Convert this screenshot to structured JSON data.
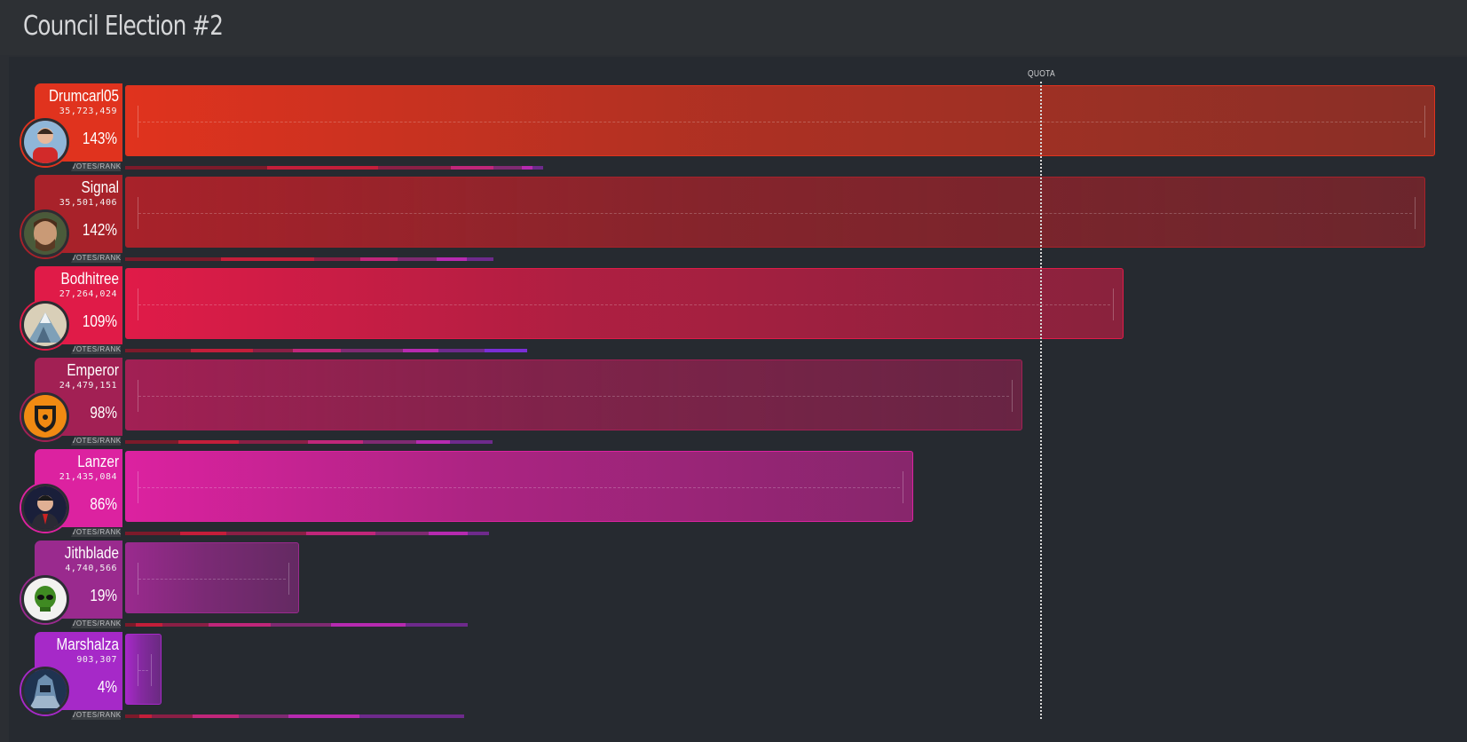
{
  "title": "Council Election #2",
  "quota_label": "QUOTA",
  "votes_rank_label": "VOTES/RANK",
  "colors": {
    "background": "#2b2e33",
    "panel": "#262a30"
  },
  "chart_data": {
    "type": "bar",
    "orientation": "horizontal",
    "title": "Council Election #2",
    "quota_percent": 100,
    "categories": [
      "Drumcarl05",
      "Signal",
      "Bodhitree",
      "Emperor",
      "Lanzer",
      "Jithblade",
      "Marshalza"
    ],
    "series": [
      {
        "name": "Votes",
        "values": [
          35723459,
          35501406,
          27264024,
          24479151,
          21435084,
          4740566,
          903307
        ]
      }
    ],
    "percent_of_quota": [
      143,
      142,
      109,
      98,
      86,
      19,
      4
    ],
    "candidates": [
      {
        "name": "Drumcarl05",
        "votes": "35,723,459",
        "percent": "143%",
        "pct": 143,
        "color": "#e0331e",
        "avatar": "person-red-shirt-avatar"
      },
      {
        "name": "Signal",
        "votes": "35,501,406",
        "percent": "142%",
        "pct": 142,
        "color": "#a8222a",
        "avatar": "bearded-man-avatar"
      },
      {
        "name": "Bodhitree",
        "votes": "27,264,024",
        "percent": "109%",
        "pct": 109,
        "color": "#e01b48",
        "avatar": "mountain-tree-avatar"
      },
      {
        "name": "Emperor",
        "votes": "24,479,151",
        "percent": "98%",
        "pct": 98,
        "color": "#a22054",
        "avatar": "orange-shield-avatar"
      },
      {
        "name": "Lanzer",
        "votes": "21,435,084",
        "percent": "86%",
        "pct": 86,
        "color": "#dc22a0",
        "avatar": "man-in-suit-avatar"
      },
      {
        "name": "Jithblade",
        "votes": "4,740,566",
        "percent": "19%",
        "pct": 19,
        "color": "#9a2a8e",
        "avatar": "green-alien-avatar"
      },
      {
        "name": "Marshalza",
        "votes": "903,307",
        "percent": "4%",
        "pct": 4,
        "color": "#a629c8",
        "avatar": "armored-warrior-avatar"
      }
    ]
  }
}
